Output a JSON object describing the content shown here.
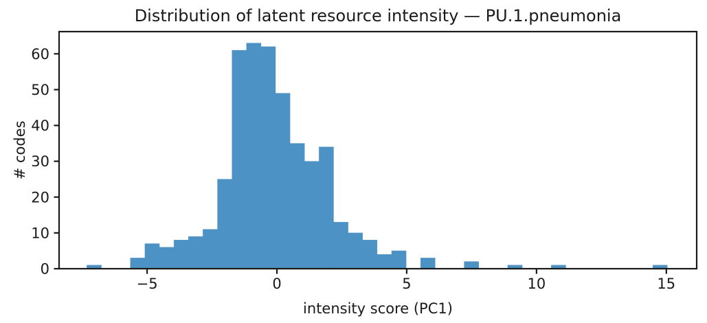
{
  "chart_data": {
    "type": "bar",
    "subtype": "histogram",
    "title": "Distribution of latent resource intensity — PU.1.pneumonia",
    "xlabel": "intensity score (PC1)",
    "ylabel": "# codes",
    "bin_start": -7.32,
    "bin_width": 0.559,
    "counts": [
      1,
      0,
      0,
      3,
      7,
      6,
      8,
      9,
      11,
      25,
      61,
      63,
      62,
      49,
      35,
      30,
      34,
      13,
      10,
      8,
      4,
      5,
      0,
      3,
      0,
      0,
      2,
      0,
      0,
      1,
      0,
      0,
      1,
      0,
      0,
      0,
      0,
      0,
      0,
      1
    ],
    "x_ticks": [
      -5,
      0,
      5,
      10,
      15
    ],
    "y_ticks": [
      0,
      10,
      20,
      30,
      40,
      50,
      60
    ],
    "xlim": [
      -8.39,
      16.17
    ],
    "ylim": [
      0,
      66.2
    ],
    "grid": false,
    "legend": null,
    "bar_color": "#4d92c4",
    "axis_color": "#1a1a1a"
  }
}
